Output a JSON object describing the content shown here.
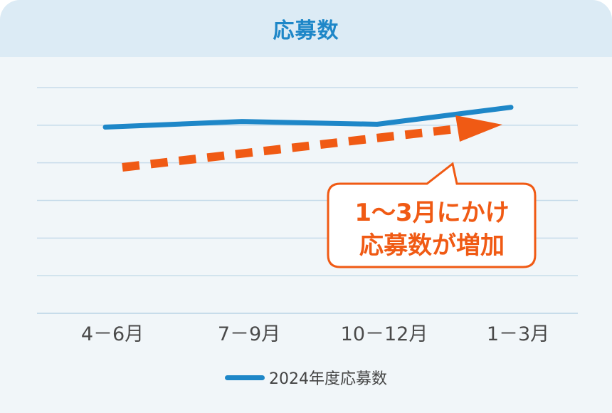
{
  "chart_data": {
    "type": "line",
    "title": "応募数",
    "categories": [
      "4－6月",
      "7－9月",
      "10－12月",
      "1－3月"
    ],
    "series": [
      {
        "name": "2024年度応募数",
        "values": [
          6.6,
          6.8,
          6.7,
          7.3
        ]
      }
    ],
    "ylim": [
      0,
      8
    ],
    "grid": true,
    "legend": "bottom-center",
    "annotation": {
      "lines": [
        "1～3月にかけ",
        "応募数が増加"
      ],
      "arrow": "upward-trend"
    }
  },
  "colors": {
    "series": "#1e87c8",
    "accent": "#f05a14",
    "header_bg": "#dcebf5",
    "plot_bg": "#f1f6f9",
    "grid": "#c7dcea"
  }
}
